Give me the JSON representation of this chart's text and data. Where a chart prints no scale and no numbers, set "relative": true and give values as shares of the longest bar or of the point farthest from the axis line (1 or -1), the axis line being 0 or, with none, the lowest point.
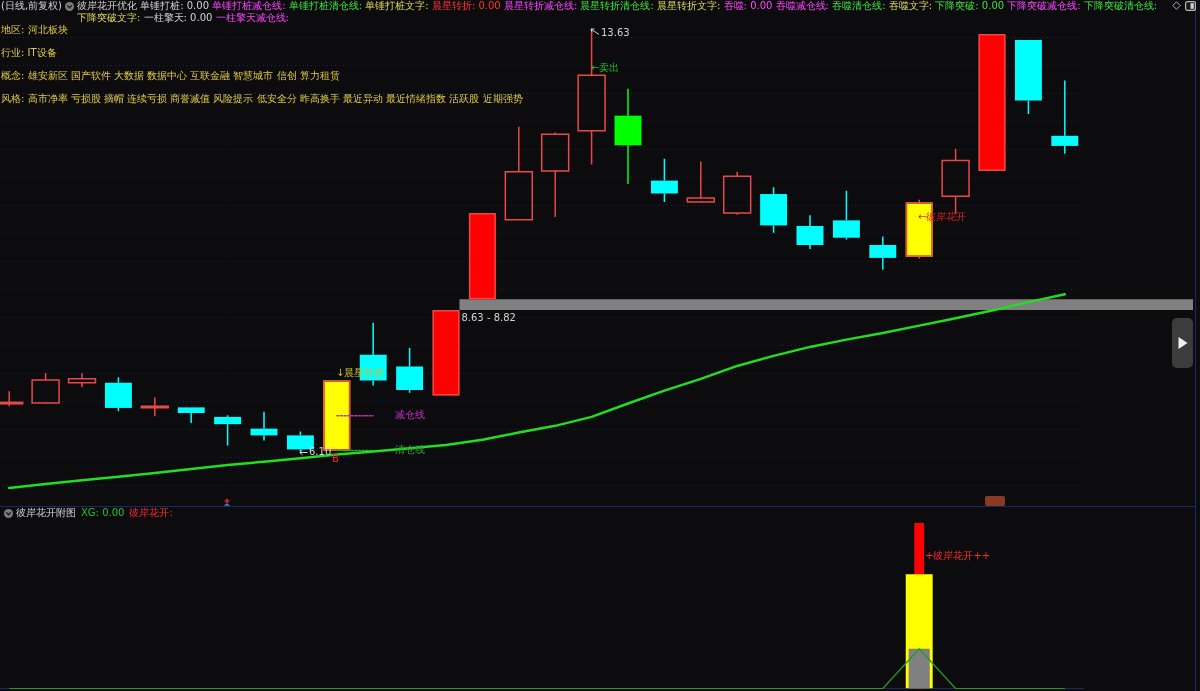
{
  "chart_data": [
    {
      "type": "candlestick",
      "title": "(日线,前复权)",
      "subtitle": "彼岸花开优化 单锤打桩: 0.00 单锤打桩减仓线: 单锤打桩清仓线: 单锤打桩文字: 晨星转折: 0.00 晨星转折减仓线: 晨星转折清仓线: 晨星转折文字: 吞噬: 0.00 吞噬减仓线: 吞噬清仓线: 吞噬文字: 下降突破: 0.00 下降突破减仓线: 下降突破清仓线: 下降突破文字: 一柱擎天: 0.00 一柱擎天减仓线:",
      "categories": [
        null,
        null,
        null,
        null,
        null,
        null,
        null,
        null,
        null,
        null,
        null,
        null,
        null,
        null,
        null,
        null,
        null,
        null,
        null,
        null,
        null,
        null,
        null,
        null,
        null,
        null,
        null,
        null,
        null,
        null
      ],
      "ohlc": [
        [
          6.97,
          7.18,
          6.91,
          6.98
        ],
        [
          6.97,
          7.5,
          6.96,
          7.38
        ],
        [
          7.33,
          7.5,
          7.25,
          7.4
        ],
        [
          7.33,
          7.43,
          6.82,
          6.88
        ],
        [
          6.89,
          7.07,
          6.73,
          6.91
        ],
        [
          6.89,
          6.89,
          6.61,
          6.79
        ],
        [
          6.72,
          6.75,
          6.21,
          6.59
        ],
        [
          6.51,
          6.81,
          6.3,
          6.39
        ],
        [
          6.39,
          6.46,
          6.1,
          6.14
        ],
        [
          6.12,
          7.37,
          6.12,
          7.37
        ],
        [
          7.83,
          8.4,
          7.28,
          7.37
        ],
        [
          7.62,
          7.95,
          7.15,
          7.2
        ],
        [
          7.1,
          8.63,
          7.1,
          8.63
        ],
        [
          8.82,
          10.36,
          8.82,
          10.36
        ],
        [
          10.24,
          11.9,
          10.24,
          11.1
        ],
        [
          11.11,
          11.8,
          10.29,
          11.77
        ],
        [
          11.83,
          13.63,
          11.23,
          12.82
        ],
        [
          12.1,
          12.58,
          10.88,
          11.57
        ],
        [
          10.94,
          11.33,
          10.56,
          10.71
        ],
        [
          10.56,
          11.28,
          10.56,
          10.63
        ],
        [
          10.36,
          11.1,
          10.33,
          11.02
        ],
        [
          10.7,
          10.82,
          10.01,
          10.14
        ],
        [
          10.13,
          10.32,
          9.72,
          9.79
        ],
        [
          10.23,
          10.76,
          9.89,
          9.92
        ],
        [
          9.79,
          9.94,
          9.35,
          9.56
        ],
        [
          9.58,
          10.6,
          9.55,
          10.55
        ],
        [
          10.66,
          11.51,
          10.34,
          11.3
        ],
        [
          11.11,
          13.56,
          11.11,
          13.56
        ],
        [
          13.45,
          13.45,
          12.13,
          12.37
        ],
        [
          11.74,
          12.73,
          11.42,
          11.56
        ]
      ],
      "color": "#e84848",
      "colors": [
        "#e84848",
        "#e84848",
        "#e84848",
        "#00ffff",
        "#e84848",
        "#00ffff",
        "#00ffff",
        "#00ffff",
        "#00ffff",
        "#ffff00",
        "#00ffff",
        "#00ffff",
        "#ff0000",
        "#ff0000",
        "#e84848",
        "#e84848",
        "#e84848",
        "#00ff00",
        "#00ffff",
        "#e84848",
        "#e84848",
        "#00ffff",
        "#00ffff",
        "#00ffff",
        "#00ffff",
        "#ffff00",
        "#e84848",
        "#ff0000",
        "#00ffff",
        "#00ffff"
      ],
      "yticks": [
        {
          "value": 5.5,
          "label": null
        },
        {
          "value": 6.0,
          "label": null
        },
        {
          "value": 6.5,
          "label": null
        },
        {
          "value": 7.0,
          "label": null
        },
        {
          "value": 7.5,
          "label": null
        },
        {
          "value": 8.0,
          "label": null
        },
        {
          "value": 8.5,
          "label": null
        },
        {
          "value": 9.0,
          "label": null
        },
        {
          "value": 9.5,
          "label": null
        },
        {
          "value": 10.0,
          "label": null
        },
        {
          "value": 10.5,
          "label": null
        },
        {
          "value": 11.0,
          "label": null
        },
        {
          "value": 11.5,
          "label": null
        },
        {
          "value": 12.0,
          "label": null
        },
        {
          "value": 12.5,
          "label": null
        },
        {
          "value": 13.0,
          "label": null
        },
        {
          "value": 13.5,
          "label": null
        }
      ],
      "grid": "y",
      "legend": false,
      "series": [
        {
          "type": "line",
          "color": "#22dd22",
          "marker": "none",
          "values": [
            5.45,
            5.52,
            5.59,
            5.65,
            5.72,
            5.79,
            5.86,
            5.92,
            5.98,
            6.05,
            6.1,
            6.16,
            6.22,
            6.31,
            6.44,
            6.56,
            6.72,
            6.96,
            7.19,
            7.4,
            7.63,
            7.81,
            7.97,
            8.1,
            8.22,
            8.35,
            8.48,
            8.62,
            8.77,
            8.91
          ]
        },
        {
          "type": "line",
          "name": "减仓线",
          "color": "#c030c0",
          "line_style": "dotted",
          "marker": "none",
          "values": [
            null,
            null,
            null,
            null,
            null,
            null,
            null,
            null,
            null,
            6.74,
            6.74,
            null,
            null,
            null,
            null,
            null,
            null,
            null,
            null,
            null,
            null,
            null,
            null,
            null,
            null,
            null,
            null,
            null,
            null,
            null
          ]
        },
        {
          "type": "line",
          "name": "清仓线",
          "color": "#30a030",
          "line_style": "dotted",
          "marker": "none",
          "values": [
            null,
            null,
            null,
            null,
            null,
            null,
            null,
            null,
            null,
            6.12,
            6.12,
            null,
            null,
            null,
            null,
            null,
            null,
            null,
            null,
            null,
            null,
            null,
            null,
            null,
            null,
            null,
            null,
            null,
            null,
            null
          ]
        }
      ],
      "bands": [
        {
          "axis": "y",
          "from": 8.63,
          "to": 8.82,
          "label": "8.63 - 8.82",
          "color": "#808080"
        }
      ],
      "annotations": [
        "地区: 河北板块",
        "行业: IT设备",
        "概念: 雄安新区 国产软件 大数据 数据中心 互联金融 智慧城市 信创 算力租赁",
        "风格: 高市净率 亏损股 摘帽 连续亏损 商誉减值 风险提示 低安全分 昨高换手 最近异动 最近情绪指数 活跃股 近期强势",
        "13.63",
        "6.10",
        "←卖出",
        "↓晨星转折",
        "B",
        "←彼岸花开"
      ]
    },
    {
      "type": "bar",
      "title": "彼岸花开附图",
      "relative": true,
      "legend": false,
      "categories": [
        null,
        null,
        null,
        null,
        null,
        null,
        null,
        null,
        null,
        null,
        null,
        null,
        null,
        null,
        null,
        null,
        null,
        null,
        null,
        null,
        null,
        null,
        null,
        null,
        null,
        null,
        null,
        null,
        null,
        null
      ],
      "series": [
        {
          "color": "#808080",
          "values": [
            null,
            null,
            null,
            null,
            null,
            null,
            null,
            null,
            null,
            null,
            null,
            null,
            null,
            null,
            null,
            null,
            null,
            null,
            null,
            null,
            null,
            null,
            null,
            null,
            null,
            0.24,
            null,
            null,
            null,
            null
          ]
        },
        {
          "color": "#ffff00",
          "values": [
            null,
            null,
            null,
            null,
            null,
            null,
            null,
            null,
            null,
            null,
            null,
            null,
            null,
            null,
            null,
            null,
            null,
            null,
            null,
            null,
            null,
            null,
            null,
            null,
            null,
            0.69,
            null,
            null,
            null,
            null
          ]
        },
        {
          "color": "#ff0000",
          "values": [
            null,
            null,
            null,
            null,
            null,
            null,
            null,
            null,
            null,
            null,
            null,
            null,
            null,
            null,
            null,
            null,
            null,
            null,
            null,
            null,
            null,
            null,
            null,
            null,
            null,
            1,
            null,
            null,
            null,
            null
          ]
        },
        {
          "type": "line",
          "color": "#1e9e1e",
          "marker": "none",
          "values": [
            0,
            0,
            0,
            0,
            0,
            0,
            0,
            0,
            0,
            0,
            0,
            0,
            0,
            0,
            0,
            0,
            0,
            0,
            0,
            0,
            0,
            0,
            0,
            0,
            0,
            0.24,
            0,
            0,
            0,
            0
          ]
        }
      ],
      "annotations": [
        "XG: 0.00",
        "彼岸花开:",
        "+彼岸花开++"
      ]
    }
  ]
}
